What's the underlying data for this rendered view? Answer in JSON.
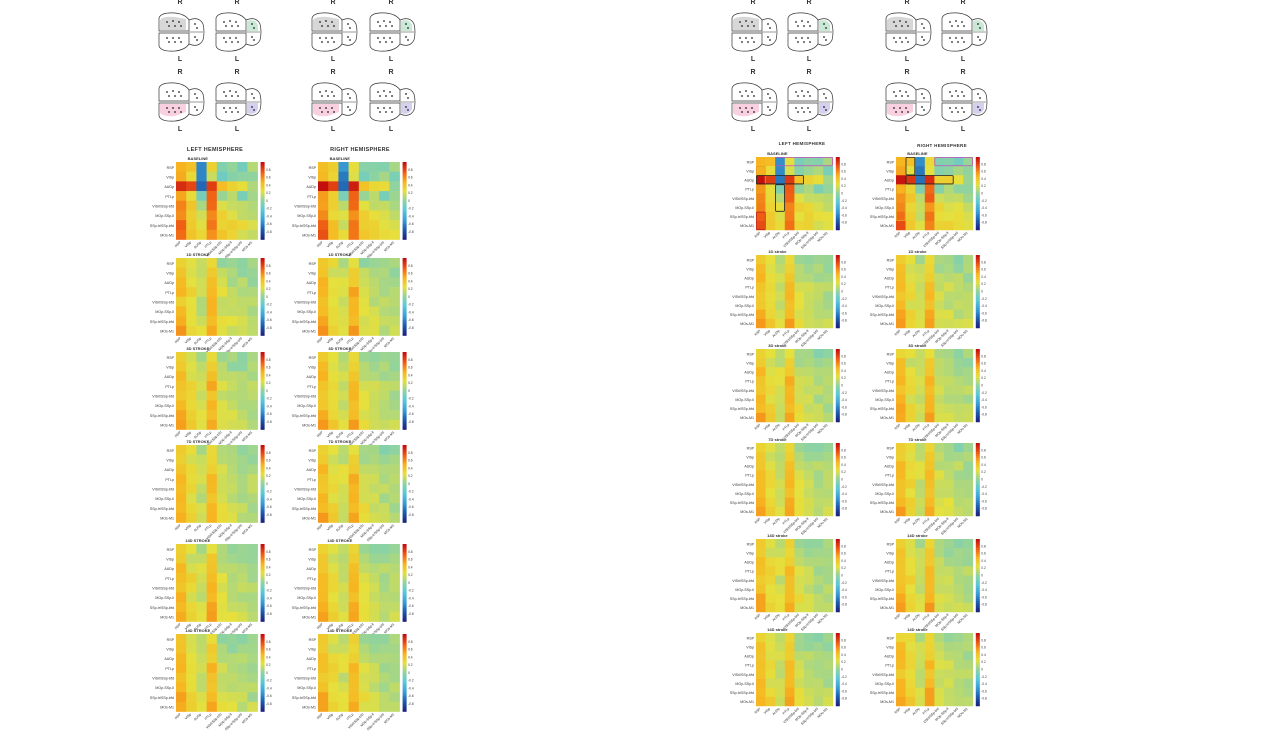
{
  "left_panel": {
    "brain_labels": {
      "top": "R",
      "bottom": "L"
    },
    "hemisphere_titles": [
      "LEFT HEMISPHERE",
      "RIGHT HEMISPHERE"
    ],
    "timepoints": [
      "BASELINE",
      "1D STROKE",
      "3D STROKE",
      "7D STROKE",
      "14D STROKE",
      "14D STROKE"
    ]
  },
  "right_panel": {
    "brain_labels": {
      "top": "R",
      "bottom": "L"
    },
    "hemisphere_titles": [
      "LEFT HEMISPHERE",
      "RIGHT HEMISPHERE"
    ],
    "timepoints": [
      "BASELINE",
      "1D stroke",
      "3D stroke",
      "7D stroke",
      "14D stroke",
      "14D stroke"
    ]
  },
  "chart_data": {
    "type": "heatmap",
    "rows": [
      "RSP",
      "VISp",
      "AUDp",
      "PTLp",
      "VISrl/SSp-bfd",
      "MOp-SSp-ll",
      "SSp-tr/SSp-bfd",
      "MOs-M1"
    ],
    "columns": [
      "RSP",
      "VISp",
      "AUDp",
      "PTLp",
      "VISrl/SSp-bfd",
      "MOp-SSp-ll",
      "SSp-tr/SSp-bfd",
      "MOs-M1"
    ],
    "colorbar_ticks": [
      "0.8",
      "0.6",
      "0.4",
      "0.2",
      "0",
      "-0.2",
      "-0.4",
      "-0.6",
      "-0.8"
    ],
    "color_scale": [
      "#1a237e",
      "#1e5fb0",
      "#3aa0d6",
      "#5ac8d8",
      "#8fd3a0",
      "#e6e03c",
      "#f7b420",
      "#ef5a14",
      "#c40f0f"
    ],
    "matrices": {
      "baseline": [
        [
          0.45,
          0.4,
          -0.55,
          0.3,
          -0.05,
          0.0,
          -0.1,
          0.05
        ],
        [
          0.5,
          0.3,
          -0.6,
          0.2,
          -0.1,
          0.0,
          0.05,
          -0.05
        ],
        [
          0.95,
          0.85,
          -0.7,
          0.9,
          0.4,
          0.3,
          0.3,
          0.05
        ],
        [
          0.55,
          0.3,
          -0.1,
          0.7,
          0.0,
          0.1,
          -0.05,
          0.0
        ],
        [
          0.6,
          0.35,
          0.1,
          0.7,
          0.2,
          0.2,
          0.1,
          0.1
        ],
        [
          0.65,
          0.3,
          0.2,
          0.6,
          0.3,
          0.25,
          0.2,
          0.15
        ],
        [
          0.7,
          0.4,
          0.2,
          0.7,
          0.3,
          0.3,
          0.25,
          0.2
        ],
        [
          0.75,
          0.4,
          0.25,
          0.65,
          0.35,
          0.3,
          0.25,
          0.2
        ]
      ],
      "stroke": [
        [
          0.35,
          0.25,
          0.1,
          0.3,
          0.05,
          0.05,
          0.0,
          0.05
        ],
        [
          0.4,
          0.2,
          0.15,
          0.35,
          0.1,
          0.05,
          0.05,
          0.05
        ],
        [
          0.45,
          0.25,
          0.2,
          0.4,
          0.15,
          0.1,
          0.1,
          0.05
        ],
        [
          0.45,
          0.3,
          0.2,
          0.5,
          0.2,
          0.15,
          0.1,
          0.1
        ],
        [
          0.4,
          0.3,
          0.15,
          0.45,
          0.2,
          0.15,
          0.1,
          0.1
        ],
        [
          0.45,
          0.25,
          0.15,
          0.45,
          0.2,
          0.15,
          0.1,
          0.1
        ],
        [
          0.5,
          0.3,
          0.2,
          0.5,
          0.25,
          0.2,
          0.15,
          0.1
        ],
        [
          0.55,
          0.35,
          0.2,
          0.55,
          0.25,
          0.2,
          0.15,
          0.15
        ]
      ]
    }
  }
}
